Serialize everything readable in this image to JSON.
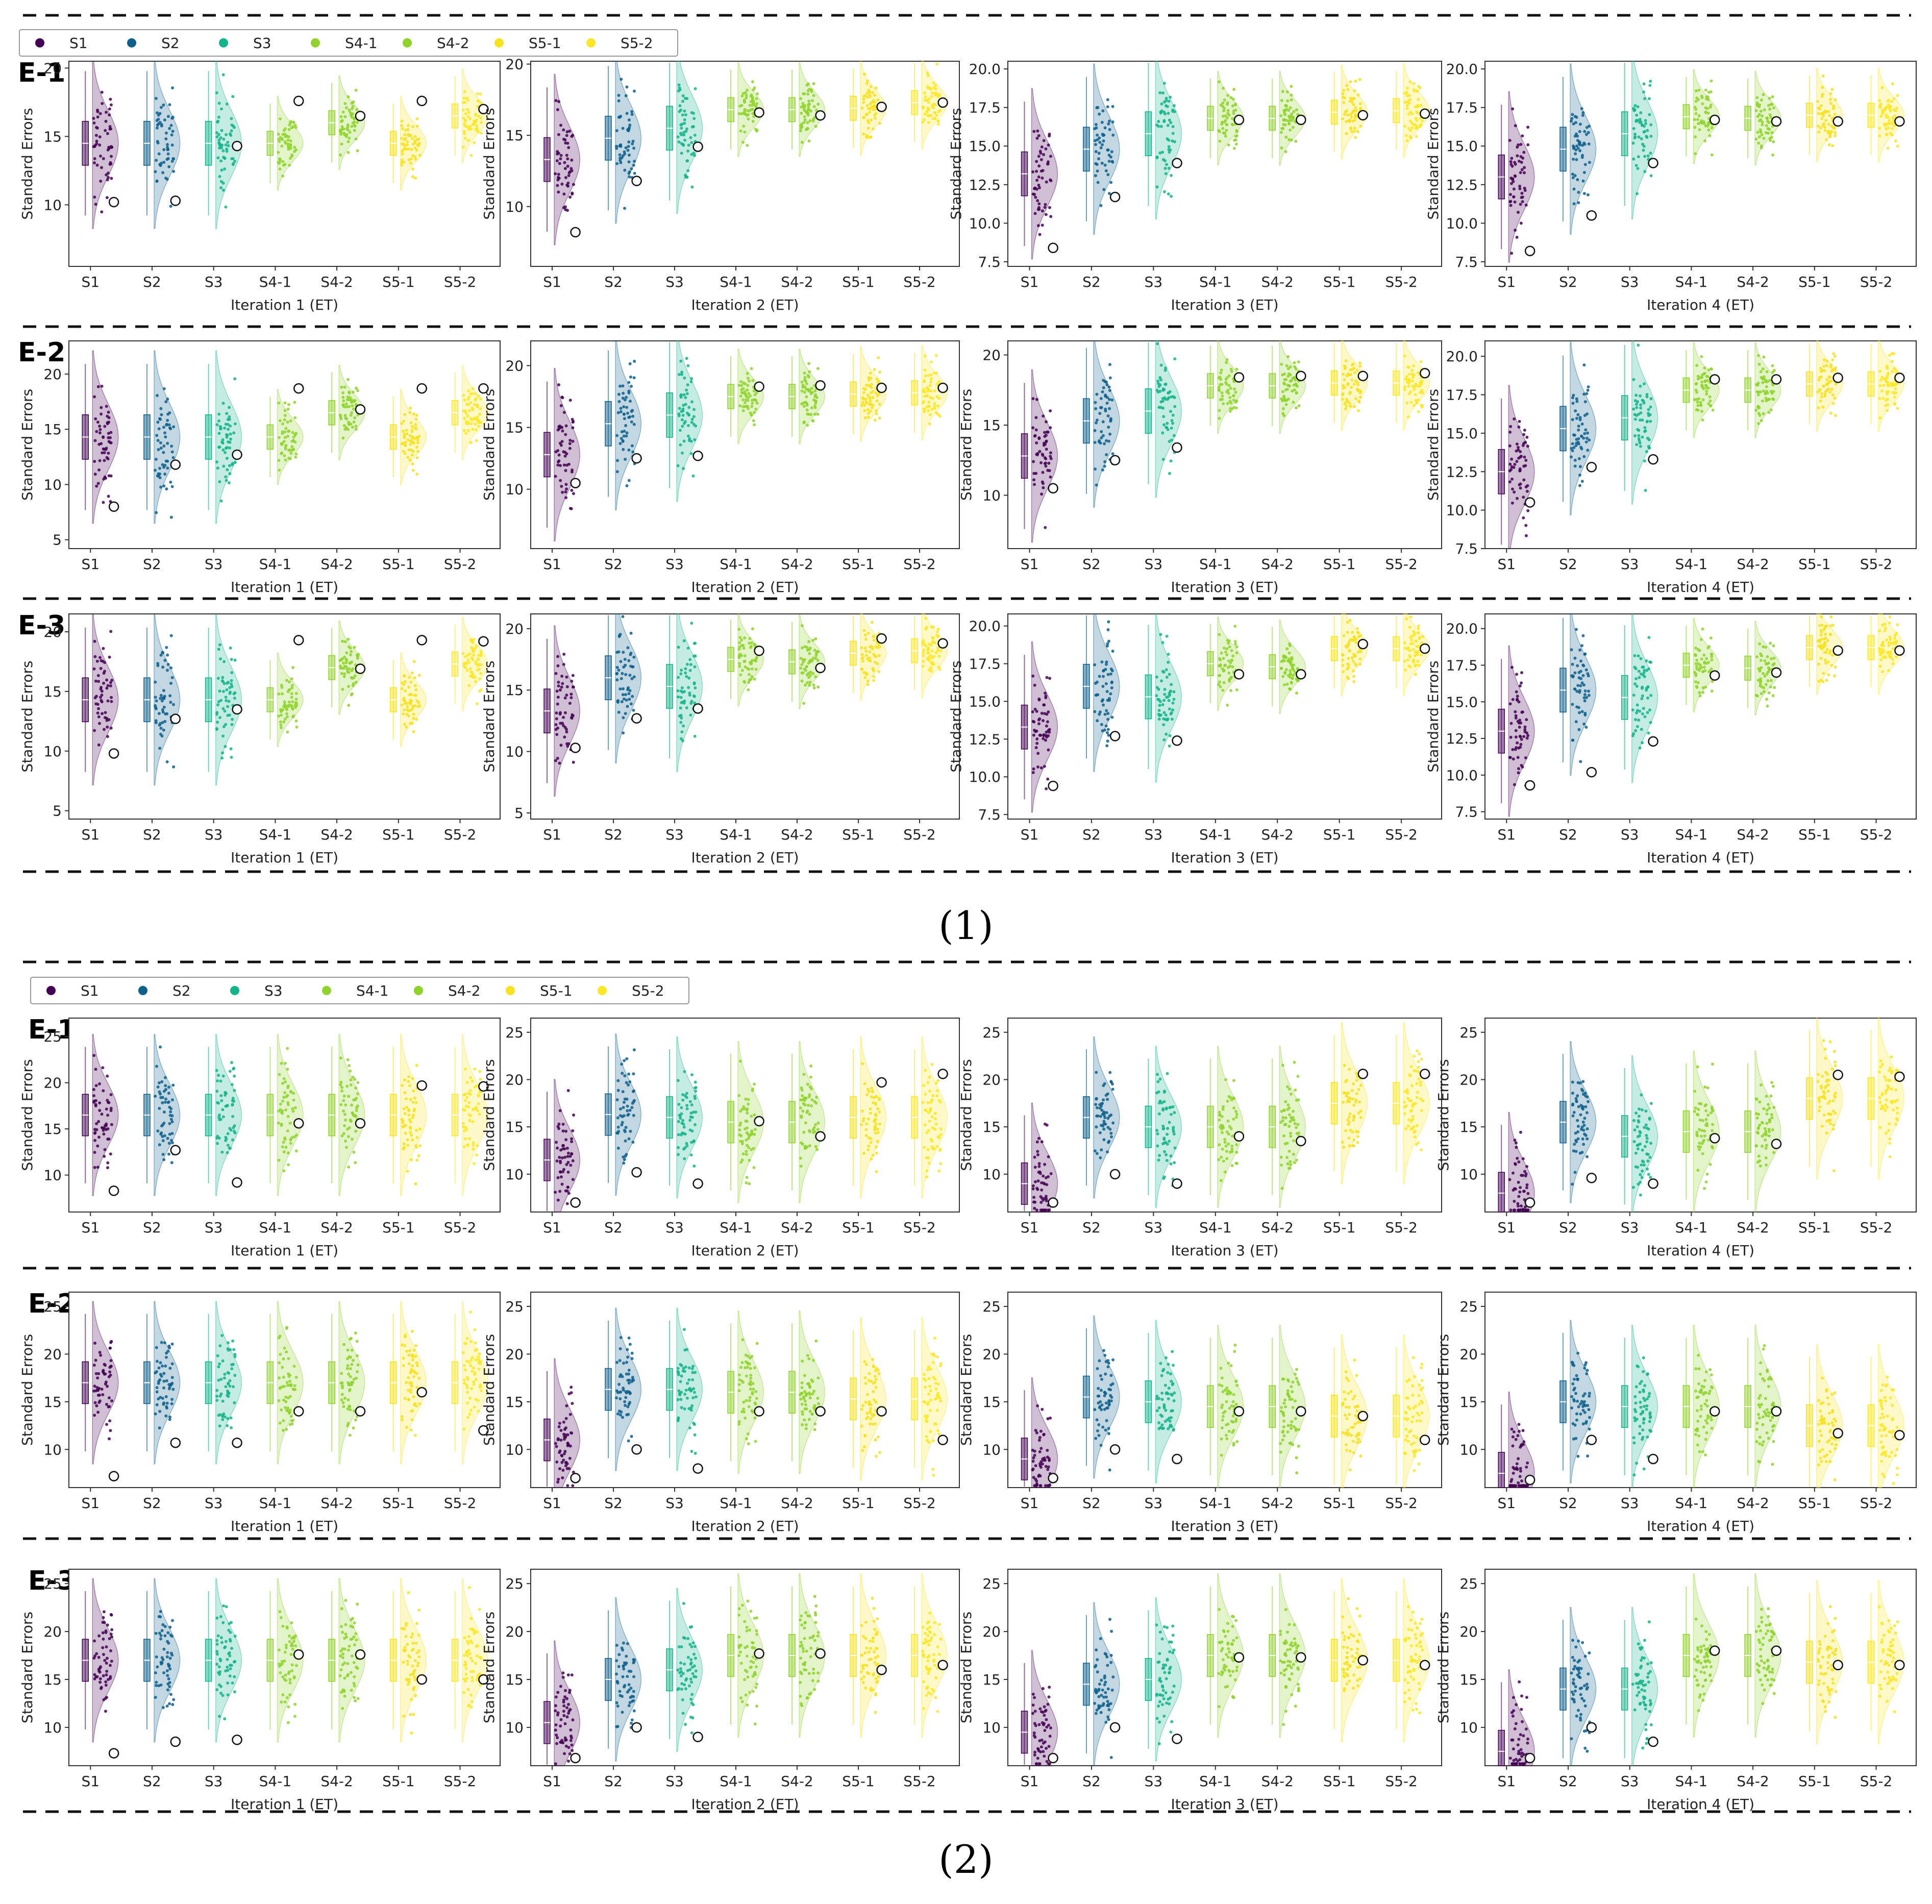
{
  "legend": {
    "items": [
      {
        "label": "S1",
        "color": "#440154"
      },
      {
        "label": "S2",
        "color": "#0d5f8c"
      },
      {
        "label": "S3",
        "color": "#13b48a"
      },
      {
        "label": "S4-1",
        "color": "#91d32e"
      },
      {
        "label": "S4-2",
        "color": "#8fd22a"
      },
      {
        "label": "S5-1",
        "color": "#f7e21e"
      },
      {
        "label": "S5-2",
        "color": "#fde725"
      }
    ]
  },
  "groups": [
    "S1",
    "S2",
    "S3",
    "S4-1",
    "S4-2",
    "S5-1",
    "S5-2"
  ],
  "y_axis_label": "Standard Errors",
  "captions": [
    "(1)",
    "(2)"
  ],
  "row_labels": [
    "E-1",
    "E-2",
    "E-3"
  ],
  "chart_data": [
    {
      "block": "(1)",
      "rows": [
        {
          "label": "E-1",
          "panels": [
            {
              "xlabel": "Iteration 1 (ET)",
              "ylim": [
                5.5,
                20.5
              ],
              "ticks": [
                10,
                15,
                20
              ],
              "tick_fmt": 0,
              "medians": [
                14.5,
                14.5,
                14.5,
                14.5,
                16.0,
                14.5,
                16.5
              ],
              "means": [
                10.2,
                10.3,
                14.3,
                17.6,
                16.5,
                17.6,
                17.0
              ]
            },
            {
              "xlabel": "Iteration 2 (ET)",
              "ylim": [
                5.8,
                20.2
              ],
              "ticks": [
                10,
                15,
                20
              ],
              "tick_fmt": 0,
              "medians": [
                13.3,
                14.8,
                15.5,
                16.8,
                16.8,
                16.9,
                17.3
              ],
              "means": [
                8.2,
                11.8,
                14.2,
                16.6,
                16.4,
                17.0,
                17.3
              ]
            },
            {
              "xlabel": "Iteration 3  (ET)",
              "ylim": [
                7.2,
                20.5
              ],
              "ticks": [
                7.5,
                10.0,
                12.5,
                15.0,
                17.5,
                20.0
              ],
              "tick_fmt": 1,
              "medians": [
                13.2,
                14.8,
                15.8,
                16.8,
                16.8,
                17.2,
                17.3
              ],
              "means": [
                8.4,
                11.7,
                13.9,
                16.7,
                16.7,
                17.0,
                17.1
              ]
            },
            {
              "xlabel": "Iteration 4  (ET)",
              "ylim": [
                7.2,
                20.5
              ],
              "ticks": [
                7.5,
                10.0,
                12.5,
                15.0,
                17.5,
                20.0
              ],
              "tick_fmt": 1,
              "medians": [
                13.0,
                14.8,
                15.8,
                16.9,
                16.8,
                17.0,
                17.0
              ],
              "means": [
                8.2,
                10.5,
                13.9,
                16.7,
                16.6,
                16.6,
                16.6
              ]
            }
          ]
        },
        {
          "label": "E-2",
          "panels": [
            {
              "xlabel": "Iteration 1 (ET)",
              "ylim": [
                4.2,
                23.0
              ],
              "ticks": [
                5,
                10,
                15,
                20
              ],
              "tick_fmt": 0,
              "medians": [
                14.3,
                14.3,
                14.3,
                14.3,
                16.5,
                14.3,
                16.5
              ],
              "means": [
                8.0,
                11.8,
                12.7,
                18.7,
                16.8,
                18.7,
                18.7
              ]
            },
            {
              "xlabel": "Iteration 2 (ET)",
              "ylim": [
                5.2,
                22.0
              ],
              "ticks": [
                10,
                15,
                20
              ],
              "tick_fmt": 0,
              "medians": [
                12.8,
                15.3,
                16.0,
                17.5,
                17.5,
                17.7,
                17.8
              ],
              "means": [
                10.5,
                12.5,
                12.7,
                18.3,
                18.4,
                18.2,
                18.2
              ]
            },
            {
              "xlabel": "Iteration 3  (ET)",
              "ylim": [
                6.2,
                21.0
              ],
              "ticks": [
                10,
                15,
                20
              ],
              "tick_fmt": 0,
              "medians": [
                12.8,
                15.3,
                16.0,
                17.8,
                17.8,
                18.0,
                18.0
              ],
              "means": [
                10.5,
                12.5,
                13.4,
                18.4,
                18.5,
                18.5,
                18.7
              ]
            },
            {
              "xlabel": "Iteration 4  (ET)",
              "ylim": [
                7.5,
                21.0
              ],
              "ticks": [
                7.5,
                10.0,
                12.5,
                15.0,
                17.5,
                20.0
              ],
              "tick_fmt": 1,
              "medians": [
                12.5,
                15.3,
                16.0,
                17.8,
                17.8,
                18.2,
                18.2
              ],
              "means": [
                10.5,
                12.8,
                13.3,
                18.5,
                18.5,
                18.6,
                18.6
              ]
            }
          ]
        },
        {
          "label": "E-3",
          "panels": [
            {
              "xlabel": "Iteration 1 (ET)",
              "ylim": [
                4.3,
                21.5
              ],
              "ticks": [
                5,
                10,
                15,
                20
              ],
              "tick_fmt": 0,
              "medians": [
                14.3,
                14.3,
                14.3,
                14.3,
                17.0,
                14.3,
                17.3
              ],
              "means": [
                9.8,
                12.7,
                13.5,
                19.3,
                16.9,
                19.3,
                19.2
              ]
            },
            {
              "xlabel": "Iteration 2 (ET)",
              "ylim": [
                4.5,
                21.2
              ],
              "ticks": [
                5,
                10,
                15,
                20
              ],
              "tick_fmt": 0,
              "medians": [
                13.3,
                16.0,
                15.3,
                17.5,
                17.3,
                18.0,
                18.2
              ],
              "means": [
                10.3,
                12.7,
                13.5,
                18.2,
                16.8,
                19.2,
                18.8
              ]
            },
            {
              "xlabel": "Iteration 3  (ET)",
              "ylim": [
                7.2,
                20.8
              ],
              "ticks": [
                7.5,
                10.0,
                12.5,
                15.0,
                17.5,
                20.0
              ],
              "tick_fmt": 1,
              "medians": [
                13.3,
                16.0,
                15.3,
                17.5,
                17.3,
                18.5,
                18.5
              ],
              "means": [
                9.4,
                12.7,
                12.4,
                16.8,
                16.8,
                18.8,
                18.5
              ]
            },
            {
              "xlabel": "Iteration 4  (ET)",
              "ylim": [
                7.0,
                21.0
              ],
              "ticks": [
                7.5,
                10.0,
                12.5,
                15.0,
                17.5,
                20.0
              ],
              "tick_fmt": 1,
              "medians": [
                13.0,
                15.8,
                15.3,
                17.5,
                17.3,
                18.7,
                18.7
              ],
              "means": [
                9.3,
                10.2,
                12.3,
                16.8,
                17.0,
                18.5,
                18.5
              ]
            }
          ]
        }
      ]
    },
    {
      "block": "(2)",
      "rows": [
        {
          "label": "E-1",
          "panels": [
            {
              "xlabel": "Iteration 1 (ET)",
              "ylim": [
                6.0,
                27.0
              ],
              "ticks": [
                10,
                15,
                20,
                25
              ],
              "tick_fmt": 0,
              "medians": [
                16.5,
                16.5,
                16.5,
                16.5,
                16.5,
                16.5,
                16.5
              ],
              "means": [
                8.3,
                12.7,
                9.2,
                15.6,
                15.6,
                19.7,
                19.6
              ]
            },
            {
              "xlabel": "Iteration 2 (ET)",
              "ylim": [
                6.0,
                26.5
              ],
              "ticks": [
                10,
                15,
                20,
                25
              ],
              "tick_fmt": 0,
              "medians": [
                11.5,
                16.3,
                16.0,
                15.5,
                15.5,
                16.0,
                16.0
              ],
              "means": [
                7.0,
                10.2,
                9.0,
                15.6,
                14.0,
                19.7,
                20.6
              ]
            },
            {
              "xlabel": "Iteration 3  (ET)",
              "ylim": [
                6.0,
                26.5
              ],
              "ticks": [
                10,
                15,
                20,
                25
              ],
              "tick_fmt": 0,
              "medians": [
                9.0,
                16.0,
                15.0,
                15.0,
                15.0,
                17.5,
                17.5
              ],
              "means": [
                7.0,
                10.0,
                9.0,
                14.0,
                13.5,
                20.6,
                20.6
              ]
            },
            {
              "xlabel": "Iteration 4  (ET)",
              "ylim": [
                6.0,
                26.5
              ],
              "ticks": [
                10,
                15,
                20,
                25
              ],
              "tick_fmt": 0,
              "medians": [
                8.0,
                15.5,
                14.0,
                14.5,
                14.5,
                18.0,
                18.0
              ],
              "means": [
                7.0,
                9.6,
                9.0,
                13.8,
                13.2,
                20.5,
                20.3
              ]
            }
          ]
        },
        {
          "label": "E-2",
          "panels": [
            {
              "xlabel": "Iteration 1 (ET)",
              "ylim": [
                6.0,
                26.5
              ],
              "ticks": [
                10,
                15,
                20,
                25
              ],
              "tick_fmt": 0,
              "medians": [
                17.0,
                17.0,
                17.0,
                17.0,
                17.0,
                17.0,
                17.0
              ],
              "means": [
                7.2,
                10.7,
                10.7,
                14.0,
                14.0,
                16.0,
                12.0
              ]
            },
            {
              "xlabel": "Iteration 2 (ET)",
              "ylim": [
                6.0,
                26.5
              ],
              "ticks": [
                10,
                15,
                20,
                25
              ],
              "tick_fmt": 0,
              "medians": [
                11.0,
                16.3,
                16.3,
                16.0,
                16.0,
                15.3,
                15.3
              ],
              "means": [
                7.0,
                10.0,
                8.0,
                14.0,
                14.0,
                14.0,
                11.0
              ]
            },
            {
              "xlabel": "Iteration 3  (ET)",
              "ylim": [
                6.0,
                26.5
              ],
              "ticks": [
                10,
                15,
                20,
                25
              ],
              "tick_fmt": 0,
              "medians": [
                9.0,
                15.5,
                15.0,
                14.5,
                14.5,
                13.5,
                13.5
              ],
              "means": [
                7.0,
                10.0,
                9.0,
                14.0,
                14.0,
                13.5,
                11.0
              ]
            },
            {
              "xlabel": "Iteration 4  (ET)",
              "ylim": [
                6.0,
                26.5
              ],
              "ticks": [
                10,
                15,
                20,
                25
              ],
              "tick_fmt": 0,
              "medians": [
                7.5,
                15.0,
                14.5,
                14.5,
                14.5,
                12.5,
                12.5
              ],
              "means": [
                6.8,
                11.0,
                9.0,
                14.0,
                14.0,
                11.7,
                11.5
              ]
            }
          ]
        },
        {
          "label": "E-3",
          "panels": [
            {
              "xlabel": "Iteration 1 (ET)",
              "ylim": [
                6.0,
                26.5
              ],
              "ticks": [
                10,
                15,
                20,
                25
              ],
              "tick_fmt": 0,
              "medians": [
                17.0,
                17.0,
                17.0,
                17.0,
                17.0,
                17.0,
                17.0
              ],
              "means": [
                7.3,
                8.5,
                8.7,
                17.6,
                17.6,
                15.0,
                15.0
              ]
            },
            {
              "xlabel": "Iteration 2 (ET)",
              "ylim": [
                6.0,
                26.5
              ],
              "ticks": [
                10,
                15,
                20,
                25
              ],
              "tick_fmt": 0,
              "medians": [
                10.5,
                15.0,
                16.0,
                17.5,
                17.5,
                17.5,
                17.5
              ],
              "means": [
                6.8,
                10.0,
                9.0,
                17.7,
                17.7,
                16.0,
                16.5
              ]
            },
            {
              "xlabel": "Iteration 3  (ET)",
              "ylim": [
                6.0,
                26.5
              ],
              "ticks": [
                10,
                15,
                20,
                25
              ],
              "tick_fmt": 0,
              "medians": [
                9.5,
                14.5,
                15.0,
                17.5,
                17.5,
                17.0,
                17.0
              ],
              "means": [
                6.8,
                10.0,
                8.8,
                17.3,
                17.3,
                17.0,
                16.5
              ]
            },
            {
              "xlabel": "Iteration 4  (ET)",
              "ylim": [
                6.0,
                26.5
              ],
              "ticks": [
                10,
                15,
                20,
                25
              ],
              "tick_fmt": 0,
              "medians": [
                7.5,
                14.0,
                14.0,
                17.5,
                17.5,
                16.8,
                16.8
              ],
              "means": [
                6.8,
                10.0,
                8.5,
                18.0,
                18.0,
                16.5,
                16.5
              ]
            }
          ]
        }
      ]
    }
  ]
}
